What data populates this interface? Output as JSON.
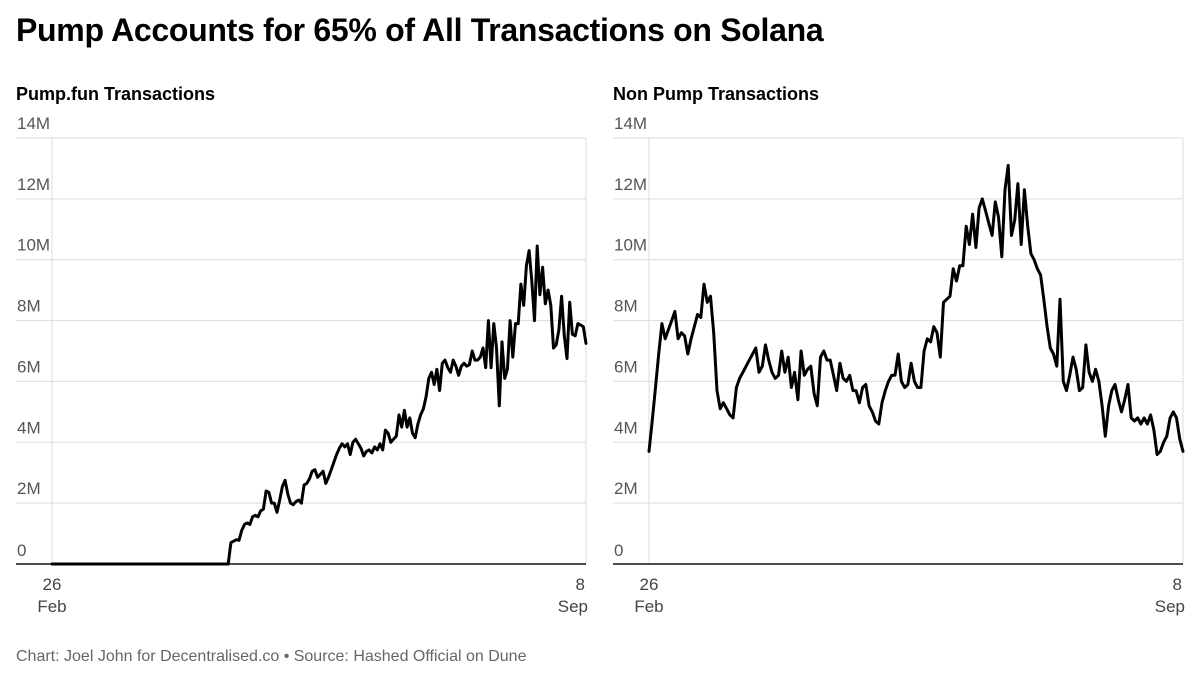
{
  "title": "Pump Accounts for 65% of All Transactions on Solana",
  "footer": "Chart: Joel John for Decentralised.co • Source: Hashed Official on Dune",
  "colors": {
    "line": "#000000",
    "grid": "#dcdcdc",
    "axis_text": "#555555"
  },
  "chart_data": [
    {
      "type": "line",
      "title": "Pump.fun Transactions",
      "xlabel": "",
      "ylabel": "",
      "ylim": [
        0,
        14000000
      ],
      "yticks": [
        {
          "value": 0,
          "label": "0"
        },
        {
          "value": 2000000,
          "label": "2M"
        },
        {
          "value": 4000000,
          "label": "4M"
        },
        {
          "value": 6000000,
          "label": "6M"
        },
        {
          "value": 8000000,
          "label": "8M"
        },
        {
          "value": 10000000,
          "label": "10M"
        },
        {
          "value": 12000000,
          "label": "12M"
        },
        {
          "value": 14000000,
          "label": "14M"
        }
      ],
      "xticks": [
        {
          "pos": 0,
          "line1": "26",
          "line2": "Feb"
        },
        {
          "pos": 1,
          "line1": "8",
          "line2": "Sep"
        }
      ],
      "grid": true,
      "series": [
        {
          "values": [
            0,
            0,
            0,
            0,
            0,
            0,
            0,
            0,
            0,
            0,
            0,
            0,
            0,
            0,
            0,
            0,
            0,
            0,
            0,
            0,
            0,
            0,
            0,
            0,
            0,
            0,
            0,
            0,
            0,
            0,
            0,
            0,
            0,
            0,
            0,
            0,
            0,
            0,
            0,
            0,
            0,
            0,
            0,
            0,
            0,
            0,
            0,
            0,
            0,
            0,
            0,
            0,
            0,
            0,
            0,
            0,
            0,
            0,
            0,
            0,
            0,
            0,
            0,
            0,
            0,
            0,
            0.7,
            0.75,
            0.8,
            0.78,
            1.1,
            1.3,
            1.35,
            1.3,
            1.55,
            1.6,
            1.55,
            1.75,
            1.8,
            2.4,
            2.35,
            2.0,
            2.0,
            1.7,
            2.1,
            2.55,
            2.75,
            2.3,
            2.0,
            1.95,
            2.05,
            2.1,
            2.0,
            2.6,
            2.65,
            2.8,
            3.05,
            3.1,
            2.85,
            2.95,
            3.05,
            2.65,
            2.85,
            3.1,
            3.35,
            3.6,
            3.8,
            3.95,
            3.85,
            3.95,
            3.6,
            4.0,
            4.1,
            3.95,
            3.8,
            3.55,
            3.7,
            3.75,
            3.65,
            3.85,
            3.75,
            3.95,
            3.75,
            4.4,
            4.3,
            4.0,
            4.1,
            4.2,
            4.9,
            4.5,
            5.05,
            4.5,
            4.8,
            4.3,
            4.15,
            4.6,
            4.9,
            5.1,
            5.5,
            6.1,
            6.3,
            5.9,
            6.4,
            5.7,
            6.6,
            6.7,
            6.45,
            6.3,
            6.7,
            6.5,
            6.2,
            6.5,
            6.6,
            6.5,
            6.55,
            7.0,
            6.7,
            6.7,
            6.8,
            7.1,
            6.45,
            8.0,
            6.45,
            7.9,
            7.1,
            5.2,
            7.3,
            6.1,
            6.4,
            8.0,
            6.8,
            7.9,
            7.9,
            9.2,
            8.5,
            9.8,
            10.3,
            9.3,
            8.0,
            10.45,
            8.85,
            9.75,
            8.55,
            9.0,
            8.5,
            7.1,
            7.2,
            7.7,
            8.8,
            7.5,
            6.75,
            8.6,
            7.55,
            7.5,
            7.9,
            7.85,
            7.8,
            7.25
          ]
        }
      ]
    },
    {
      "type": "line",
      "title": "Non Pump Transactions",
      "xlabel": "",
      "ylabel": "",
      "ylim": [
        0,
        14000000
      ],
      "yticks": [
        {
          "value": 0,
          "label": "0"
        },
        {
          "value": 2000000,
          "label": "2M"
        },
        {
          "value": 4000000,
          "label": "4M"
        },
        {
          "value": 6000000,
          "label": "6M"
        },
        {
          "value": 8000000,
          "label": "8M"
        },
        {
          "value": 10000000,
          "label": "10M"
        },
        {
          "value": 12000000,
          "label": "12M"
        },
        {
          "value": 14000000,
          "label": "14M"
        }
      ],
      "xticks": [
        {
          "pos": 0,
          "line1": "26",
          "line2": "Feb"
        },
        {
          "pos": 1,
          "line1": "8",
          "line2": "Sep"
        }
      ],
      "grid": true,
      "series": [
        {
          "values": [
            3.7,
            4.7,
            5.8,
            6.9,
            7.9,
            7.4,
            7.7,
            8.0,
            8.3,
            7.4,
            7.6,
            7.5,
            6.9,
            7.4,
            7.8,
            8.2,
            8.1,
            9.2,
            8.6,
            8.8,
            7.6,
            5.7,
            5.1,
            5.3,
            5.1,
            4.9,
            4.8,
            5.8,
            6.1,
            6.3,
            6.5,
            6.7,
            6.9,
            7.1,
            6.3,
            6.5,
            7.2,
            6.7,
            6.3,
            6.1,
            6.2,
            7.0,
            6.3,
            6.8,
            5.8,
            6.3,
            5.4,
            7.0,
            6.2,
            6.4,
            6.5,
            5.6,
            5.2,
            6.8,
            7.0,
            6.7,
            6.7,
            6.2,
            5.7,
            6.6,
            6.1,
            6.0,
            6.2,
            5.7,
            5.7,
            5.3,
            5.8,
            5.9,
            5.2,
            5.0,
            4.7,
            4.6,
            5.3,
            5.7,
            6.0,
            6.2,
            6.2,
            6.9,
            6.0,
            5.8,
            5.9,
            6.6,
            6.0,
            5.8,
            5.8,
            7.0,
            7.4,
            7.3,
            7.8,
            7.6,
            6.8,
            8.6,
            8.7,
            8.8,
            9.7,
            9.3,
            9.8,
            9.8,
            11.1,
            10.5,
            11.5,
            10.4,
            11.7,
            12.0,
            11.6,
            11.2,
            10.8,
            11.9,
            11.4,
            10.1,
            12.3,
            13.1,
            10.8,
            11.3,
            12.5,
            10.5,
            12.3,
            11.1,
            10.2,
            10.0,
            9.7,
            9.5,
            8.7,
            7.8,
            7.1,
            6.9,
            6.5,
            8.7,
            6.0,
            5.7,
            6.2,
            6.8,
            6.4,
            5.7,
            5.8,
            7.2,
            6.3,
            6.0,
            6.4,
            6.0,
            5.2,
            4.2,
            5.2,
            5.7,
            5.9,
            5.4,
            5.0,
            5.4,
            5.9,
            4.8,
            4.7,
            4.8,
            4.6,
            4.8,
            4.6,
            4.9,
            4.4,
            3.6,
            3.7,
            4.0,
            4.2,
            4.8,
            5.0,
            4.8,
            4.1,
            3.7
          ]
        }
      ]
    }
  ]
}
